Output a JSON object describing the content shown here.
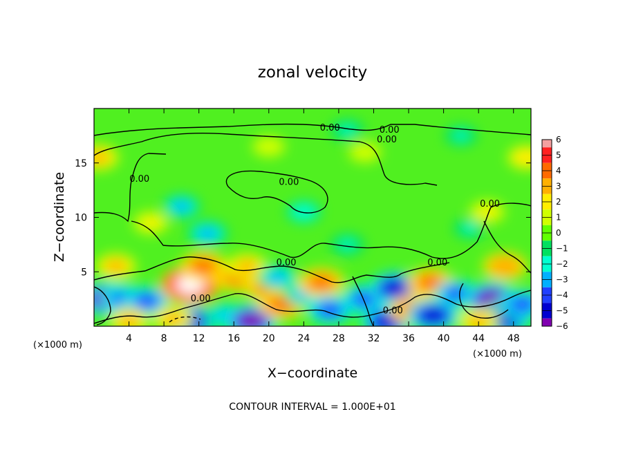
{
  "chart_data": {
    "type": "heatmap",
    "title": "zonal velocity",
    "xlabel": "X−coordinate",
    "ylabel": "Z−coordinate",
    "x_unit": "(×1000 m)",
    "y_unit": "(×1000 m)",
    "xlim": [
      0,
      50
    ],
    "ylim": [
      0,
      20
    ],
    "x_ticks": [
      4,
      8,
      12,
      16,
      20,
      24,
      28,
      32,
      36,
      40,
      44,
      48
    ],
    "x_tick_labels": [
      "4",
      "8",
      "12",
      "16",
      "20",
      "24",
      "28",
      "32",
      "36",
      "40",
      "44",
      "48"
    ],
    "y_ticks": [
      5,
      10,
      15
    ],
    "y_tick_labels": [
      "5",
      "10",
      "15"
    ],
    "colorbar": {
      "min": -6,
      "max": 6,
      "ticks": [
        6,
        5,
        4,
        3,
        2,
        1,
        0,
        -1,
        -2,
        -3,
        -4,
        -5,
        -6
      ],
      "tick_labels": [
        "6",
        "5",
        "4",
        "3",
        "2",
        "1",
        "0",
        "−1",
        "−2",
        "−3",
        "−4",
        "−5",
        "−6"
      ],
      "colors": [
        "#f4a0a0",
        "#ff2020",
        "#ff6a00",
        "#ffb000",
        "#ffee00",
        "#d0ff00",
        "#60ff00",
        "#00e060",
        "#00ffd0",
        "#00b0ff",
        "#2040ff",
        "#0000d0",
        "#8000b0"
      ]
    },
    "contour_level_label": "0.00",
    "contour_labels": [
      {
        "x": 27.0,
        "z": 18.3
      },
      {
        "x": 33.8,
        "z": 18.1
      },
      {
        "x": 33.5,
        "z": 17.2
      },
      {
        "x": 5.2,
        "z": 13.6
      },
      {
        "x": 22.3,
        "z": 13.3
      },
      {
        "x": 45.3,
        "z": 11.3
      },
      {
        "x": 22.0,
        "z": 5.9
      },
      {
        "x": 39.3,
        "z": 5.9
      },
      {
        "x": 12.2,
        "z": 2.6
      },
      {
        "x": 34.2,
        "z": 1.5
      }
    ],
    "velocity_field": [
      {
        "x": 1.5,
        "z": 2.5,
        "v": -5.5
      },
      {
        "x": 3.5,
        "z": 2.5,
        "v": -4.0
      },
      {
        "x": 6.0,
        "z": 2.3,
        "v": -4.0
      },
      {
        "x": 2.5,
        "z": 5.5,
        "v": 3.0
      },
      {
        "x": 4.0,
        "z": 0.5,
        "v": 3.0
      },
      {
        "x": 11.0,
        "z": 3.8,
        "v": 6.5
      },
      {
        "x": 12.5,
        "z": 5.5,
        "v": 4.0
      },
      {
        "x": 11.0,
        "z": 0.5,
        "v": -5.0
      },
      {
        "x": 9.0,
        "z": 0.7,
        "v": 3.0
      },
      {
        "x": 15.0,
        "z": 1.0,
        "v": -3.0
      },
      {
        "x": 16.5,
        "z": 4.5,
        "v": 4.0
      },
      {
        "x": 17.5,
        "z": 5.5,
        "v": 3.0
      },
      {
        "x": 18.0,
        "z": 0.5,
        "v": -5.5
      },
      {
        "x": 20.0,
        "z": 3.5,
        "v": 4.0
      },
      {
        "x": 21.0,
        "z": 4.5,
        "v": -3.0
      },
      {
        "x": 21.5,
        "z": 2.0,
        "v": 4.0
      },
      {
        "x": 24.0,
        "z": 3.0,
        "v": -3.0
      },
      {
        "x": 26.0,
        "z": 4.0,
        "v": 4.0
      },
      {
        "x": 27.0,
        "z": 1.5,
        "v": -4.0
      },
      {
        "x": 31.0,
        "z": 2.5,
        "v": -4.0
      },
      {
        "x": 34.5,
        "z": 3.5,
        "v": -5.0
      },
      {
        "x": 33.5,
        "z": 0.4,
        "v": -5.0
      },
      {
        "x": 36.5,
        "z": 1.5,
        "v": 4.0
      },
      {
        "x": 38.5,
        "z": 4.0,
        "v": 4.0
      },
      {
        "x": 38.8,
        "z": 1.0,
        "v": -5.0
      },
      {
        "x": 41.5,
        "z": 3.0,
        "v": -3.5
      },
      {
        "x": 45.5,
        "z": 2.5,
        "v": -5.5
      },
      {
        "x": 47.0,
        "z": 0.7,
        "v": -5.0
      },
      {
        "x": 49.0,
        "z": 2.0,
        "v": -4.0
      },
      {
        "x": 47.0,
        "z": 5.5,
        "v": 3.5
      },
      {
        "x": 44.0,
        "z": 0.5,
        "v": 3.0
      },
      {
        "x": 13.0,
        "z": 8.5,
        "v": -3.0
      },
      {
        "x": 10.0,
        "z": 11.0,
        "v": -2.5
      },
      {
        "x": 24.0,
        "z": 10.5,
        "v": -2.0
      },
      {
        "x": 29.0,
        "z": 7.5,
        "v": -1.8
      },
      {
        "x": 43.0,
        "z": 9.0,
        "v": -1.5
      },
      {
        "x": 29.0,
        "z": 18.0,
        "v": -1.8
      },
      {
        "x": 42.0,
        "z": 17.5,
        "v": -1.5
      },
      {
        "x": 0.5,
        "z": 15.5,
        "v": 3.0
      },
      {
        "x": 49.5,
        "z": 15.5,
        "v": 2.5
      },
      {
        "x": 6.5,
        "z": 9.5,
        "v": 2.0
      },
      {
        "x": 45.0,
        "z": 10.5,
        "v": 2.0
      },
      {
        "x": 31.0,
        "z": 16.0,
        "v": 1.5
      },
      {
        "x": 20.0,
        "z": 16.5,
        "v": 1.5
      }
    ]
  },
  "footer": "CONTOUR INTERVAL = 1.000E+01"
}
